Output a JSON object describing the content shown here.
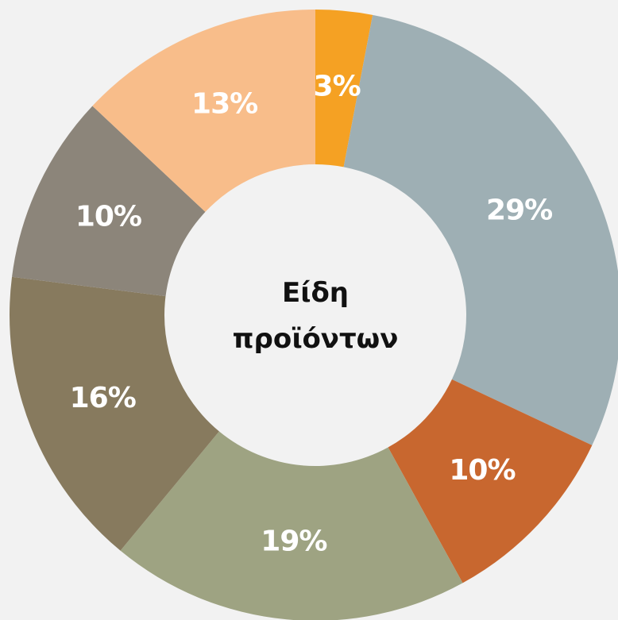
{
  "chart_data": {
    "type": "donut",
    "title": "Είδη προϊόντων",
    "values": [
      3,
      29,
      10,
      19,
      16,
      10,
      13
    ],
    "value_labels": [
      "3%",
      "29%",
      "10%",
      "19%",
      "16%",
      "10%",
      "13%"
    ],
    "colors": [
      "#f5a123",
      "#9eafb4",
      "#c8672f",
      "#9ea382",
      "#877a5e",
      "#8c857a",
      "#f8bd8a"
    ]
  }
}
